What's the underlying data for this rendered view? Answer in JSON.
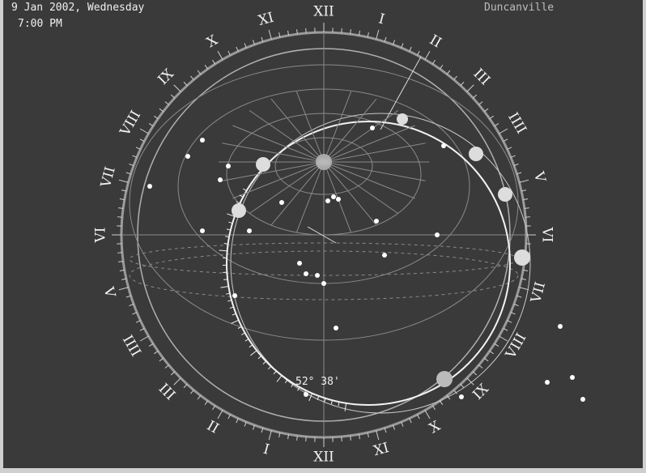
{
  "header": {
    "date": "9 Jan 2002, Wednesday",
    "time": "7:00 PM",
    "location": "Duncanville"
  },
  "dial": {
    "hour_labels": [
      "XII",
      "I",
      "II",
      "III",
      "IIII",
      "V",
      "VI",
      "VII",
      "VIII",
      "IX",
      "X",
      "XI",
      "XII",
      "I",
      "II",
      "III",
      "IIII",
      "V",
      "VI",
      "VII",
      "VIII",
      "IX",
      "X",
      "XI"
    ]
  },
  "readout": "52° 38'"
}
